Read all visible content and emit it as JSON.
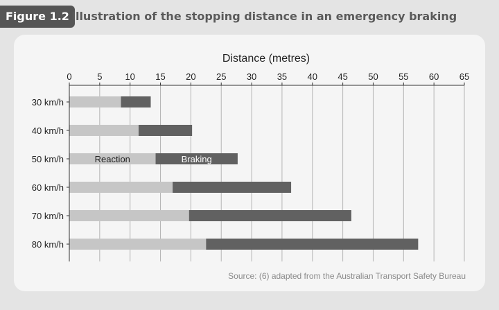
{
  "figure": {
    "tag": "Figure 1.2",
    "title": "Illustration of the stopping distance in an emergency braking"
  },
  "colors": {
    "reaction": "#c6c6c6",
    "braking": "#616161",
    "grid": "#b4b4b4",
    "axis": "#333333",
    "panel": "#f5f5f5",
    "tag_bg": "#555555"
  },
  "chart_data": {
    "type": "bar",
    "orientation": "horizontal",
    "stacked": true,
    "title": "Distance (metres)",
    "xlabel": "",
    "ylabel": "",
    "axis_position": "top",
    "xlim": [
      0,
      65
    ],
    "xticks": [
      0,
      5,
      10,
      15,
      20,
      25,
      30,
      35,
      40,
      45,
      50,
      55,
      60,
      65
    ],
    "grid": true,
    "categories": [
      "30 km/h",
      "40 km/h",
      "50 km/h",
      "60 km/h",
      "70 km/h",
      "80 km/h"
    ],
    "series": [
      {
        "name": "Reaction",
        "values": [
          8.5,
          11.4,
          14.2,
          17.0,
          19.7,
          22.5
        ]
      },
      {
        "name": "Braking",
        "values": [
          4.9,
          8.8,
          13.5,
          19.5,
          26.7,
          34.9
        ]
      }
    ],
    "label_row": 2,
    "source": "Source: (6) adapted from the Australian Transport Safety Bureau"
  }
}
